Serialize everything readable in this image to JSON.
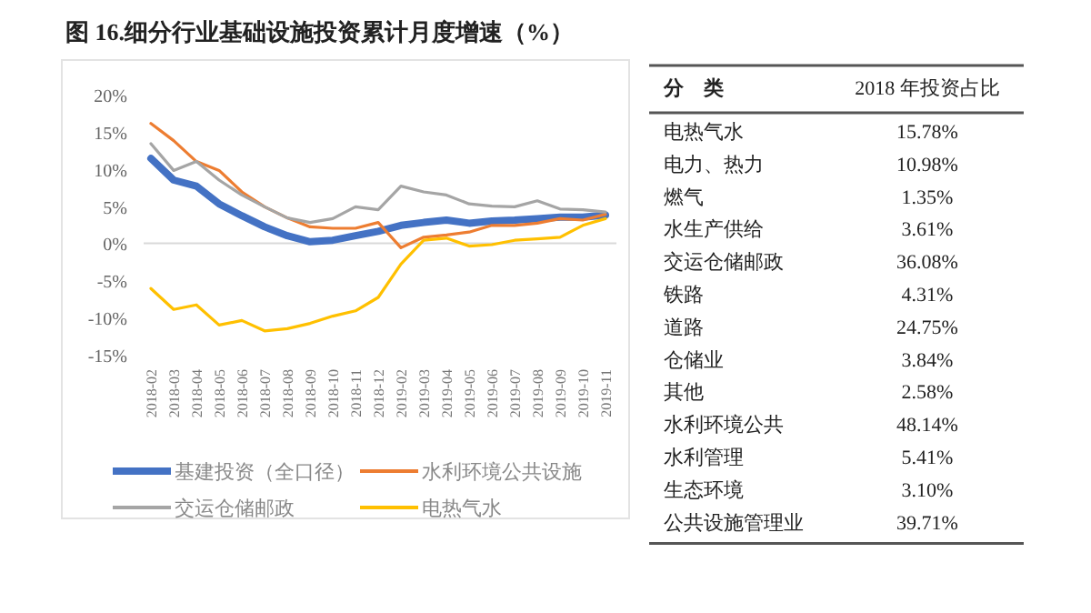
{
  "chart_data": [
    {
      "type": "line",
      "title": "图 16.细分行业基础设施投资累计月度增速（%）",
      "categories": [
        "2018-02",
        "2018-03",
        "2018-04",
        "2018-05",
        "2018-06",
        "2018-07",
        "2018-08",
        "2018-09",
        "2018-10",
        "2018-11",
        "2018-12",
        "2019-02",
        "2019-03",
        "2019-04",
        "2019-05",
        "2019-06",
        "2019-07",
        "2019-08",
        "2019-09",
        "2019-10",
        "2019-11"
      ],
      "series": [
        {
          "name": "基建投资（全口径）",
          "color": "#4472c4",
          "values": [
            11.4,
            8.5,
            7.7,
            5.3,
            3.7,
            2.2,
            1.0,
            0.2,
            0.4,
            1.0,
            1.6,
            2.4,
            2.8,
            3.1,
            2.7,
            3.0,
            3.1,
            3.3,
            3.5,
            3.5,
            3.8
          ]
        },
        {
          "name": "水利环境公共设施",
          "color": "#ed7d31",
          "values": [
            16.1,
            13.8,
            11.0,
            9.8,
            6.9,
            4.9,
            3.4,
            2.2,
            2.0,
            2.0,
            2.8,
            -0.6,
            0.8,
            1.1,
            1.5,
            2.4,
            2.4,
            2.7,
            3.3,
            3.1,
            3.9
          ]
        },
        {
          "name": "交运仓储邮政",
          "color": "#a5a5a5",
          "values": [
            13.4,
            9.8,
            11.0,
            8.5,
            6.5,
            4.9,
            3.4,
            2.8,
            3.3,
            4.9,
            4.5,
            7.7,
            6.9,
            6.5,
            5.3,
            5.0,
            4.9,
            5.7,
            4.6,
            4.5,
            4.2
          ]
        },
        {
          "name": "电热气水",
          "color": "#ffc000",
          "values": [
            -6.1,
            -8.9,
            -8.3,
            -11.0,
            -10.4,
            -11.8,
            -11.5,
            -10.8,
            -9.8,
            -9.1,
            -7.3,
            -2.8,
            0.4,
            0.7,
            -0.4,
            -0.2,
            0.4,
            0.6,
            0.8,
            2.4,
            3.3
          ]
        }
      ],
      "ylim": [
        -15,
        20
      ],
      "yticks": [
        {
          "value": 20,
          "label": "20%"
        },
        {
          "value": 15,
          "label": "15%"
        },
        {
          "value": 10,
          "label": "10%"
        },
        {
          "value": 5,
          "label": "5%"
        },
        {
          "value": 0,
          "label": "0%"
        },
        {
          "value": -5,
          "label": "-5%"
        },
        {
          "value": -10,
          "label": "-10%"
        },
        {
          "value": -15,
          "label": "-15%"
        }
      ],
      "ref_lines": [
        {
          "axis": "y",
          "value": 0,
          "color": "#d9d9d9"
        }
      ],
      "grid": false,
      "legend": "bottom",
      "marker": "none",
      "line_style": "solid"
    },
    {
      "type": "other",
      "annotations": [
        "分　类",
        "2018 年投资占比"
      ],
      "categories": [
        "电热气水",
        "电力、热力",
        "燃气",
        "水生产供给",
        "交运仓储邮政",
        "铁路",
        "道路",
        "仓储业",
        "其他",
        "水利环境公共",
        "水利管理",
        "生态环境",
        "公共设施管理业"
      ],
      "value_labels": [
        "15.78%",
        "10.98%",
        "1.35%",
        "3.61%",
        "36.08%",
        "4.31%",
        "24.75%",
        "3.84%",
        "2.58%",
        "48.14%",
        "5.41%",
        "3.10%",
        "39.71%"
      ]
    }
  ]
}
